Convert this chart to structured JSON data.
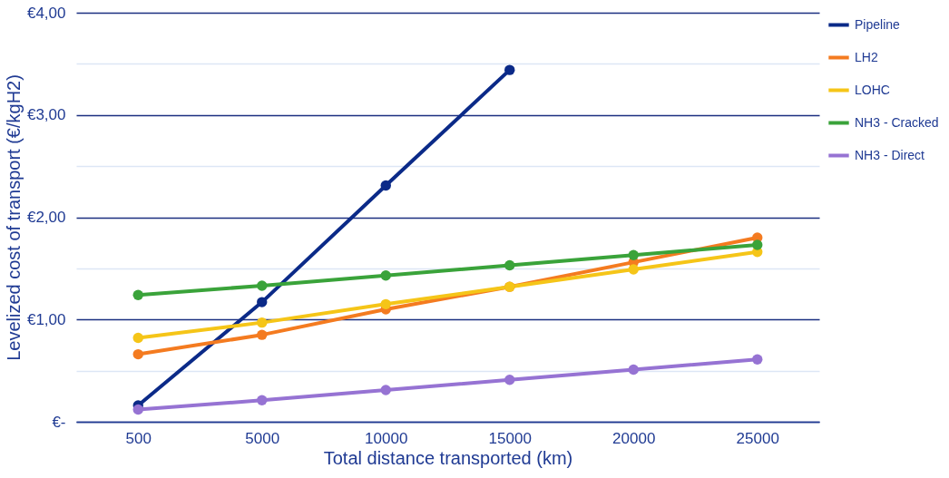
{
  "chart_data": {
    "type": "line",
    "xlabel": "Total distance transported (km)",
    "ylabel": "Levelized cost of transport (€/kgH2)",
    "categories": [
      "500",
      "5000",
      "10000",
      "15000",
      "20000",
      "25000"
    ],
    "series": [
      {
        "name": "Pipeline",
        "color": "#0b2a88",
        "values": [
          0.16,
          1.17,
          2.31,
          3.44,
          null,
          null
        ]
      },
      {
        "name": "LH2",
        "color": "#f47b20",
        "values": [
          0.66,
          0.85,
          1.1,
          1.32,
          1.56,
          1.8
        ]
      },
      {
        "name": "LOHC",
        "color": "#f5c518",
        "values": [
          0.82,
          0.97,
          1.15,
          1.32,
          1.49,
          1.66
        ]
      },
      {
        "name": "NH3 - Cracked",
        "color": "#3aa33a",
        "values": [
          1.24,
          1.33,
          1.43,
          1.53,
          1.63,
          1.73
        ]
      },
      {
        "name": "NH3 - Direct",
        "color": "#9673d3",
        "values": [
          0.12,
          0.21,
          0.31,
          0.41,
          0.51,
          0.61
        ]
      }
    ],
    "ylim": [
      0,
      4
    ],
    "yticks": [
      {
        "value": 0,
        "label": "€-"
      },
      {
        "value": 0.5,
        "label": null
      },
      {
        "value": 1,
        "label": "€1,00"
      },
      {
        "value": 1.5,
        "label": null
      },
      {
        "value": 2,
        "label": "€2,00"
      },
      {
        "value": 2.5,
        "label": null
      },
      {
        "value": 3,
        "label": "€3,00"
      },
      {
        "value": 3.5,
        "label": null
      },
      {
        "value": 4,
        "label": "€4,00"
      }
    ],
    "grid": "y",
    "legend": "right",
    "marker": "circle",
    "line_style": "solid"
  }
}
